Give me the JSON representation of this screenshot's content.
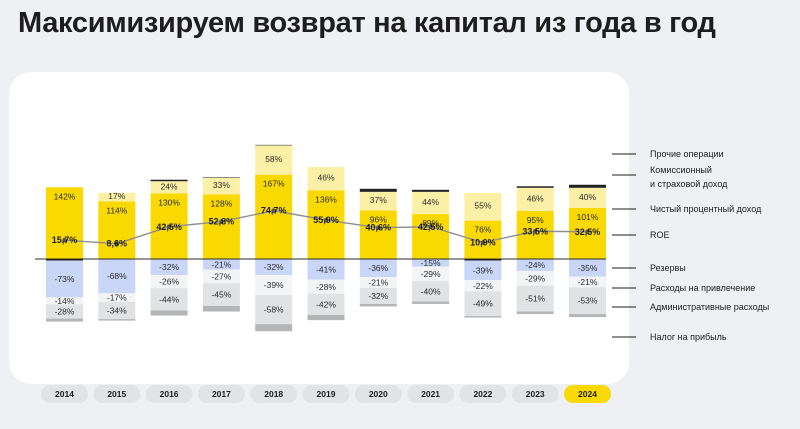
{
  "title": "Максимизируем возврат на капитал из года в год",
  "legend": {
    "other": "Прочие операции",
    "fee_1": "Комиссионный",
    "fee_2": "и страховой доход",
    "nii": "Чистый процентный доход",
    "roe": "ROE",
    "reserves": "Резервы",
    "funding": "Расходы на привлечение",
    "admin": "Административные расходы",
    "tax": "Налог на прибыль"
  },
  "colors": {
    "nii": "#f9d900",
    "fee": "#fbf0a6",
    "other": "#222222",
    "reserves": "#c9d6f8",
    "funding": "#f3f4f6",
    "admin": "#e1e2e4",
    "tax": "#b4b5b7",
    "roe_line": "#8e8e8e",
    "year_pill": "#e2e3e6",
    "year_pill_active": "#f9d900"
  },
  "chart_data": {
    "type": "bar",
    "unit": "%",
    "categories": [
      "2014",
      "2015",
      "2016",
      "2017",
      "2018",
      "2019",
      "2020",
      "2021",
      "2022",
      "2023",
      "2024"
    ],
    "highlighted_category": "2024",
    "series": [
      {
        "name": "Чистый процентный доход",
        "key": "nii",
        "values": [
          142,
          114,
          130,
          128,
          167,
          136,
          96,
          89,
          76,
          95,
          101
        ],
        "labels": [
          "142%",
          "114%",
          "130%",
          "128%",
          "167%",
          "136%",
          "96%",
          "89%",
          "76%",
          "95%",
          "101%"
        ]
      },
      {
        "name": "Комиссионный и страховой доход",
        "key": "fee",
        "values": [
          0,
          17,
          24,
          33,
          58,
          46,
          37,
          44,
          55,
          46,
          40
        ],
        "labels": [
          "",
          "17%",
          "24%",
          "33%",
          "58%",
          "46%",
          "37%",
          "44%",
          "55%",
          "46%",
          "40%"
        ]
      },
      {
        "name": "Прочие операции",
        "key": "other",
        "values": [
          -3,
          0,
          3,
          1,
          1,
          0,
          6,
          4,
          -3,
          3,
          6
        ],
        "labels": [
          "",
          "",
          "",
          "",
          "",
          "",
          "",
          "",
          "",
          "",
          ""
        ]
      },
      {
        "name": "Резервы",
        "key": "reserves",
        "values": [
          -73,
          -68,
          -32,
          -21,
          -32,
          -41,
          -36,
          -15,
          -39,
          -24,
          -35
        ],
        "labels": [
          "-73%",
          "-68%",
          "-32%",
          "-21%",
          "-32%",
          "-41%",
          "-36%",
          "-15%",
          "-39%",
          "-24%",
          "-35%"
        ]
      },
      {
        "name": "Расходы на привлечение",
        "key": "funding",
        "values": [
          -14,
          -17,
          -26,
          -27,
          -39,
          -28,
          -21,
          -29,
          -22,
          -29,
          -21
        ],
        "labels": [
          "-14%",
          "-17%",
          "-26%",
          "-27%",
          "-39%",
          "-28%",
          "-21%",
          "-29%",
          "-22%",
          "-29%",
          "-21%"
        ]
      },
      {
        "name": "Административные расходы",
        "key": "admin",
        "values": [
          -28,
          -34,
          -44,
          -45,
          -58,
          -42,
          -32,
          -40,
          -49,
          -51,
          -53
        ],
        "labels": [
          "-28%",
          "-34%",
          "-44%",
          "-45%",
          "-58%",
          "-42%",
          "-32%",
          "-40%",
          "-49%",
          "-51%",
          "-53%"
        ]
      },
      {
        "name": "Налог на прибыль",
        "key": "tax",
        "values": [
          -6,
          -3,
          -10,
          -11,
          -14,
          -10,
          -5,
          -5,
          -3,
          -5,
          -6
        ],
        "labels": [
          "",
          "",
          "",
          "",
          "",
          "",
          "",
          "",
          "",
          "",
          ""
        ]
      }
    ],
    "roe": {
      "name": "ROE",
      "values": [
        15.7,
        8.6,
        42.5,
        52.8,
        74.7,
        55.9,
        40.6,
        42.5,
        10.9,
        33.5,
        32.5
      ],
      "labels": [
        "15,7%",
        "8,6%",
        "42,5%",
        "52,8%",
        "74,7%",
        "55,9%",
        "40,6%",
        "42,5%",
        "10,9%",
        "33,5%",
        "32,5%"
      ]
    }
  }
}
